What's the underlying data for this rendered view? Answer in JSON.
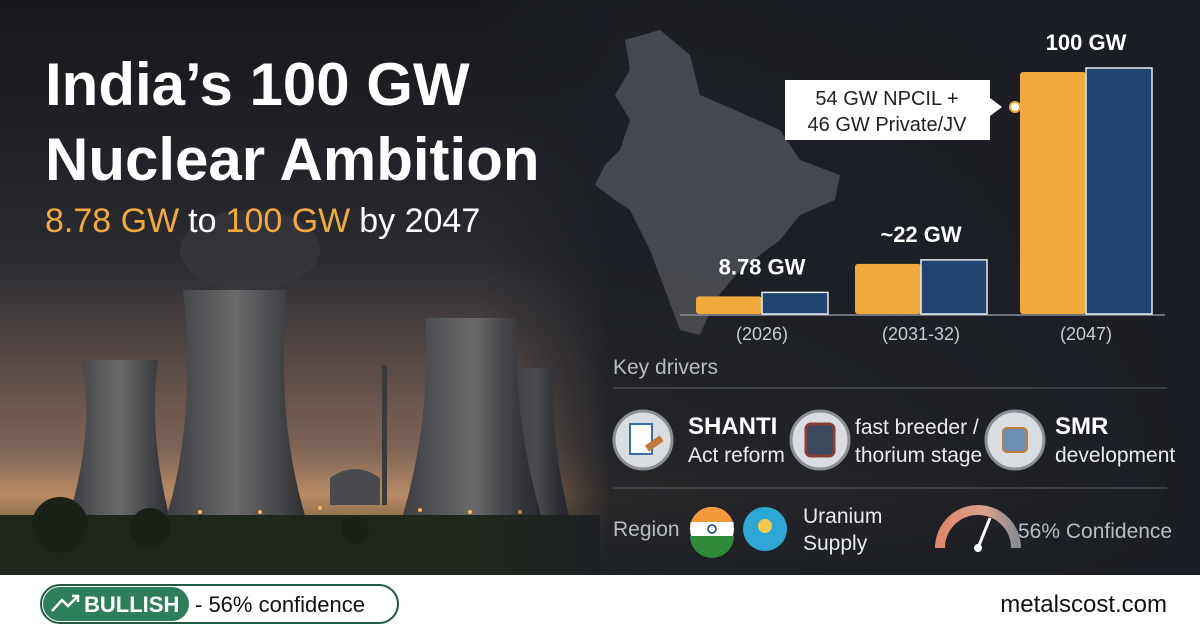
{
  "header": {
    "title_lines": [
      "India’s 100 GW",
      "Nuclear Ambition"
    ],
    "subtitle": [
      "8.78 GW",
      "to",
      "100 GW",
      "by 2047"
    ]
  },
  "chart_data": {
    "type": "bar",
    "categories": [
      "(2026)",
      "(2031-32)",
      "(2047)"
    ],
    "values": [
      8.78,
      22,
      100
    ],
    "value_labels": [
      "8.78 GW",
      "~22 GW",
      "100 GW"
    ],
    "colors": [
      "#f2a93b",
      "#1f4470"
    ],
    "annotation": [
      "54 GW NPCIL +",
      "46 GW Private/JV"
    ]
  },
  "drivers": {
    "label": "Key drivers",
    "items": [
      {
        "lines": [
          "SHANTI",
          "Act reform"
        ],
        "bold": true
      },
      {
        "lines": [
          "fast breeder /",
          "thorium stage"
        ],
        "bold": false
      },
      {
        "lines": [
          "SMR",
          "development"
        ],
        "bold": true
      }
    ]
  },
  "region": {
    "label": "Region",
    "supply": [
      "Uranium",
      "Supply"
    ],
    "confidence": "56% Confidence"
  },
  "footer": {
    "signal": "BULLISH",
    "confidence": "- 56% confidence",
    "site": "metalscost.com"
  }
}
